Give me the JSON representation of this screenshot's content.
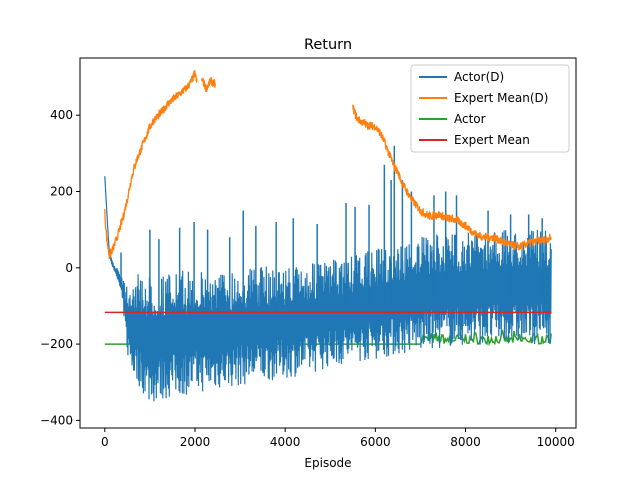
{
  "chart_data": {
    "type": "line",
    "title": "Return",
    "xlabel": "Episode",
    "ylabel": "",
    "xlim": [
      -550,
      10450
    ],
    "ylim": [
      -420,
      550
    ],
    "xticks": [
      0,
      2000,
      4000,
      6000,
      8000,
      10000
    ],
    "yticks": [
      -400,
      -200,
      0,
      200,
      400
    ],
    "grid": false,
    "legend_position": "top-right",
    "series": [
      {
        "name": "Actor(D)",
        "color": "#1f77b4",
        "style": "noisy-band",
        "x": [
          0,
          100,
          200,
          300,
          400,
          500,
          600,
          800,
          1000,
          1500,
          2000,
          2500,
          3000,
          3500,
          4000,
          4500,
          5000,
          5500,
          6000,
          6500,
          7000,
          7500,
          8000,
          8500,
          9000,
          9500,
          9900
        ],
        "upper": [
          240,
          40,
          10,
          0,
          -20,
          -40,
          -20,
          -15,
          -20,
          -10,
          -5,
          -10,
          0,
          5,
          5,
          10,
          20,
          30,
          50,
          60,
          80,
          90,
          95,
          100,
          100,
          100,
          100
        ],
        "lower": [
          240,
          30,
          -10,
          -40,
          -100,
          -230,
          -280,
          -320,
          -360,
          -340,
          -330,
          -320,
          -310,
          -300,
          -290,
          -280,
          -260,
          -250,
          -240,
          -230,
          -220,
          -210,
          -205,
          -200,
          -200,
          -200,
          -200
        ],
        "spikes": [
          [
            360,
            40
          ],
          [
            1000,
            100
          ],
          [
            1200,
            75
          ],
          [
            1660,
            105
          ],
          [
            1980,
            120
          ],
          [
            2280,
            100
          ],
          [
            2770,
            80
          ],
          [
            3070,
            150
          ],
          [
            3350,
            110
          ],
          [
            3800,
            120
          ],
          [
            4180,
            130
          ],
          [
            4710,
            115
          ],
          [
            5350,
            170
          ],
          [
            5550,
            160
          ],
          [
            5860,
            165
          ],
          [
            6200,
            270
          ],
          [
            6350,
            230
          ],
          [
            6420,
            320
          ],
          [
            6600,
            230
          ],
          [
            6800,
            200
          ],
          [
            7300,
            190
          ],
          [
            7560,
            200
          ],
          [
            7800,
            190
          ],
          [
            8500,
            150
          ],
          [
            9000,
            140
          ],
          [
            9400,
            140
          ],
          [
            9700,
            130
          ]
        ]
      },
      {
        "name": "Expert Mean(D)",
        "color": "#ff7f0e",
        "segments": [
          {
            "x": [
              0,
              40,
              100,
              200,
              300,
              400,
              500,
              600,
              700,
              800,
              900,
              1000,
              1100,
              1200,
              1300,
              1400,
              1500,
              1600,
              1700,
              1800,
              1900,
              2000,
              2050
            ],
            "y": [
              145,
              80,
              30,
              55,
              90,
              130,
              180,
              240,
              280,
              310,
              340,
              370,
              390,
              400,
              415,
              430,
              440,
              450,
              460,
              470,
              485,
              510,
              480
            ]
          },
          {
            "x": [
              2150,
              2250,
              2350,
              2450
            ],
            "y": [
              495,
              470,
              490,
              480
            ]
          },
          {
            "x": [
              5500,
              5600,
              5800,
              6000,
              6100,
              6200,
              6300,
              6400,
              6500,
              6600,
              6700,
              6800,
              7000,
              7200,
              7400,
              7600,
              7800,
              8000,
              8200,
              8400,
              8600,
              8800,
              9000,
              9200,
              9400,
              9600,
              9800,
              9900
            ],
            "y": [
              420,
              390,
              375,
              370,
              355,
              330,
              300,
              270,
              250,
              220,
              200,
              180,
              150,
              135,
              140,
              130,
              125,
              110,
              90,
              80,
              80,
              70,
              60,
              55,
              65,
              70,
              75,
              80
            ]
          }
        ]
      },
      {
        "name": "Actor",
        "color": "#2ca02c",
        "x": [
          0,
          7000,
          9900
        ],
        "y": [
          -200,
          -200,
          -200
        ],
        "noise_from_x": 7000,
        "noise_upper": -165
      },
      {
        "name": "Expert Mean",
        "color": "#d62728",
        "x": [
          0,
          9900
        ],
        "y": [
          -117,
          -117
        ]
      }
    ]
  }
}
